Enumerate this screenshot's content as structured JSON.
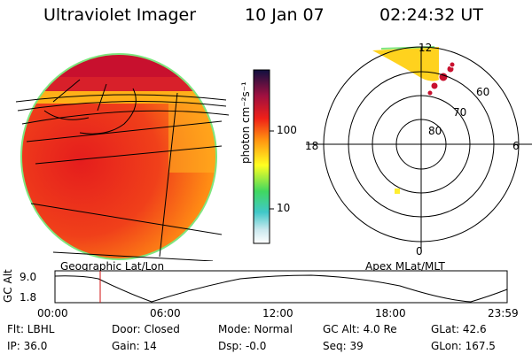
{
  "header": {
    "instrument": "Ultraviolet Imager",
    "date": "10 Jan 07",
    "time": "02:24:32 UT"
  },
  "colorbar": {
    "label": "photon cm⁻²s⁻¹",
    "ticks": [
      "100",
      "10"
    ]
  },
  "polar": {
    "lat_labels": [
      "60",
      "70",
      "80"
    ],
    "mlt_labels": [
      "12",
      "18",
      "6",
      "0"
    ]
  },
  "captions": {
    "left": "Geographic Lat/Lon",
    "right": "Apex MLat/MLT"
  },
  "timeline": {
    "ylabel": "GC Alt",
    "ymax": "9.0",
    "ymin": "1.8",
    "xticks": [
      "00:00",
      "06:00",
      "12:00",
      "18:00",
      "23:59"
    ],
    "current_time_fraction": 0.1
  },
  "info": {
    "flt": "Flt: LBHL",
    "ip": "IP: 36.0",
    "door": "Door: Closed",
    "gain": "Gain: 14",
    "mode": "Mode: Normal",
    "dsp": "Dsp:   -0.0",
    "gcalt": "GC Alt: 4.0 Re",
    "seq": "Seq: 39",
    "glat": "GLat:   42.6",
    "glon": "GLon: 167.5"
  },
  "colors": {
    "red": "#e51d1d",
    "orange": "#ff8c14",
    "deep_red": "#c8102e",
    "yellow": "#ffd21e",
    "green": "#7ee67e"
  }
}
